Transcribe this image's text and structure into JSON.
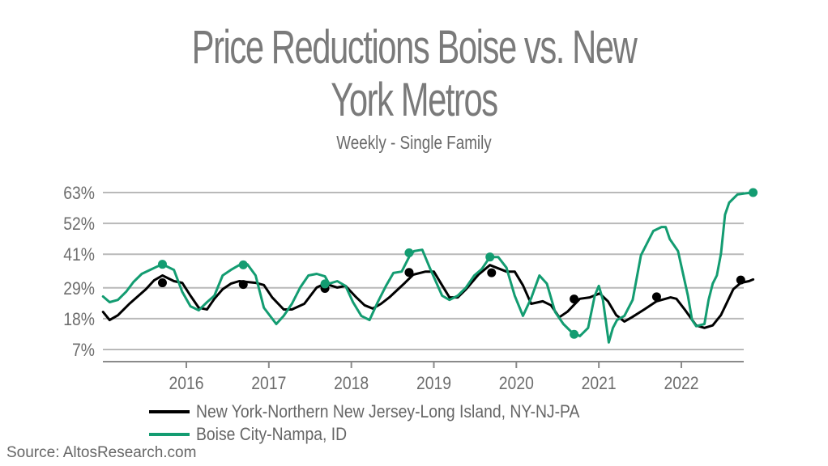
{
  "chart_data": {
    "type": "line",
    "title": "Price Reductions Boise vs. New York Metros",
    "title_lines": [
      "Price Reductions Boise vs. New",
      "York Metros"
    ],
    "subtitle": "Weekly - Single Family",
    "xlabel": "",
    "ylabel": "",
    "xlim": [
      2015.0,
      2022.8
    ],
    "ylim": [
      5.5,
      63
    ],
    "x_ticks": [
      2016,
      2017,
      2018,
      2019,
      2020,
      2021,
      2022
    ],
    "x_tick_labels": [
      "2016",
      "2017",
      "2018",
      "2019",
      "2020",
      "2021",
      "2022"
    ],
    "y_ticks": [
      7,
      18,
      29,
      41,
      52,
      63
    ],
    "y_tick_labels": [
      "7%",
      "18%",
      "29%",
      "41%",
      "52%",
      "63%"
    ],
    "grid": "horizontal",
    "legend_position": "bottom",
    "series": [
      {
        "name": "New York-Northern New Jersey-Long Island, NY-NJ-PA",
        "color": "#000000",
        "points": [
          [
            2014.99,
            20.4
          ],
          [
            2015.07,
            17.5
          ],
          [
            2015.17,
            19.2
          ],
          [
            2015.31,
            23.3
          ],
          [
            2015.51,
            28.5
          ],
          [
            2015.61,
            31.7
          ],
          [
            2015.71,
            33.4
          ],
          [
            2015.85,
            31.4
          ],
          [
            2015.95,
            30.8
          ],
          [
            2016.05,
            26.2
          ],
          [
            2016.15,
            21.9
          ],
          [
            2016.25,
            21.3
          ],
          [
            2016.34,
            25.1
          ],
          [
            2016.44,
            28.5
          ],
          [
            2016.54,
            30.5
          ],
          [
            2016.64,
            31.4
          ],
          [
            2016.84,
            30.8
          ],
          [
            2016.94,
            30.0
          ],
          [
            2017.04,
            25.6
          ],
          [
            2017.18,
            21.3
          ],
          [
            2017.28,
            21.3
          ],
          [
            2017.43,
            23.3
          ],
          [
            2017.58,
            29.1
          ],
          [
            2017.68,
            30.5
          ],
          [
            2017.83,
            29.1
          ],
          [
            2017.93,
            29.7
          ],
          [
            2018.06,
            25.6
          ],
          [
            2018.16,
            22.8
          ],
          [
            2018.26,
            21.6
          ],
          [
            2018.36,
            23.3
          ],
          [
            2018.46,
            25.6
          ],
          [
            2018.65,
            30.8
          ],
          [
            2018.75,
            33.7
          ],
          [
            2018.9,
            34.8
          ],
          [
            2019.0,
            34.8
          ],
          [
            2019.1,
            29.9
          ],
          [
            2019.19,
            25.6
          ],
          [
            2019.29,
            25.6
          ],
          [
            2019.39,
            28.5
          ],
          [
            2019.54,
            33.7
          ],
          [
            2019.68,
            37.1
          ],
          [
            2019.88,
            34.8
          ],
          [
            2019.98,
            34.8
          ],
          [
            2020.08,
            29.9
          ],
          [
            2020.18,
            23.3
          ],
          [
            2020.32,
            24.2
          ],
          [
            2020.42,
            22.8
          ],
          [
            2020.52,
            18.5
          ],
          [
            2020.62,
            20.5
          ],
          [
            2020.77,
            25.1
          ],
          [
            2020.89,
            25.6
          ],
          [
            2021.01,
            27.0
          ],
          [
            2021.11,
            24.2
          ],
          [
            2021.21,
            19.3
          ],
          [
            2021.31,
            17.0
          ],
          [
            2021.4,
            18.5
          ],
          [
            2021.55,
            21.3
          ],
          [
            2021.7,
            24.2
          ],
          [
            2021.87,
            25.6
          ],
          [
            2021.94,
            25.1
          ],
          [
            2022.04,
            21.3
          ],
          [
            2022.18,
            15.6
          ],
          [
            2022.28,
            14.7
          ],
          [
            2022.38,
            15.6
          ],
          [
            2022.48,
            19.3
          ],
          [
            2022.63,
            28.5
          ],
          [
            2022.72,
            30.8
          ],
          [
            2022.82,
            31.4
          ],
          [
            2022.87,
            32.0
          ]
        ],
        "markers": [
          [
            2015.71,
            30.8
          ],
          [
            2016.69,
            30.2
          ],
          [
            2017.68,
            28.8
          ],
          [
            2018.7,
            34.5
          ],
          [
            2019.7,
            34.4
          ],
          [
            2020.7,
            25.0
          ],
          [
            2021.7,
            25.8
          ],
          [
            2022.72,
            31.8
          ]
        ]
      },
      {
        "name": "Boise City-Nampa, ID",
        "color": "#139c71",
        "points": [
          [
            2014.99,
            25.9
          ],
          [
            2015.07,
            23.9
          ],
          [
            2015.17,
            24.7
          ],
          [
            2015.27,
            27.6
          ],
          [
            2015.36,
            31.1
          ],
          [
            2015.46,
            34.0
          ],
          [
            2015.56,
            35.4
          ],
          [
            2015.66,
            36.8
          ],
          [
            2015.71,
            37.4
          ],
          [
            2015.85,
            35.4
          ],
          [
            2015.95,
            27.6
          ],
          [
            2016.05,
            22.4
          ],
          [
            2016.15,
            21.0
          ],
          [
            2016.25,
            23.9
          ],
          [
            2016.34,
            26.2
          ],
          [
            2016.44,
            33.4
          ],
          [
            2016.54,
            35.4
          ],
          [
            2016.64,
            37.1
          ],
          [
            2016.74,
            37.4
          ],
          [
            2016.84,
            33.4
          ],
          [
            2016.94,
            21.9
          ],
          [
            2017.09,
            16.1
          ],
          [
            2017.18,
            19.0
          ],
          [
            2017.28,
            23.3
          ],
          [
            2017.38,
            29.1
          ],
          [
            2017.48,
            33.4
          ],
          [
            2017.58,
            34.0
          ],
          [
            2017.68,
            33.1
          ],
          [
            2017.73,
            30.5
          ],
          [
            2017.83,
            31.4
          ],
          [
            2017.93,
            29.7
          ],
          [
            2018.02,
            23.9
          ],
          [
            2018.12,
            19.0
          ],
          [
            2018.22,
            17.5
          ],
          [
            2018.32,
            23.9
          ],
          [
            2018.42,
            29.7
          ],
          [
            2018.51,
            34.3
          ],
          [
            2018.61,
            34.8
          ],
          [
            2018.71,
            40.6
          ],
          [
            2018.76,
            42.1
          ],
          [
            2018.86,
            42.6
          ],
          [
            2018.95,
            36.2
          ],
          [
            2019.1,
            26.2
          ],
          [
            2019.19,
            24.7
          ],
          [
            2019.29,
            26.2
          ],
          [
            2019.39,
            29.1
          ],
          [
            2019.49,
            33.4
          ],
          [
            2019.58,
            35.7
          ],
          [
            2019.68,
            40.0
          ],
          [
            2019.78,
            40.0
          ],
          [
            2019.88,
            36.2
          ],
          [
            2019.98,
            26.2
          ],
          [
            2020.08,
            19.0
          ],
          [
            2020.18,
            25.3
          ],
          [
            2020.28,
            33.4
          ],
          [
            2020.37,
            30.5
          ],
          [
            2020.47,
            20.4
          ],
          [
            2020.57,
            16.1
          ],
          [
            2020.67,
            13.2
          ],
          [
            2020.77,
            11.8
          ],
          [
            2020.87,
            14.7
          ],
          [
            2020.95,
            26.2
          ],
          [
            2021.0,
            29.7
          ],
          [
            2021.05,
            24.7
          ],
          [
            2021.12,
            9.5
          ],
          [
            2021.17,
            14.7
          ],
          [
            2021.22,
            17.5
          ],
          [
            2021.31,
            19.0
          ],
          [
            2021.41,
            24.7
          ],
          [
            2021.51,
            40.6
          ],
          [
            2021.61,
            46.4
          ],
          [
            2021.66,
            49.3
          ],
          [
            2021.76,
            50.7
          ],
          [
            2021.81,
            50.7
          ],
          [
            2021.86,
            46.4
          ],
          [
            2021.96,
            42.1
          ],
          [
            2022.08,
            26.2
          ],
          [
            2022.13,
            17.5
          ],
          [
            2022.18,
            15.3
          ],
          [
            2022.28,
            16.1
          ],
          [
            2022.33,
            24.7
          ],
          [
            2022.38,
            30.5
          ],
          [
            2022.43,
            33.4
          ],
          [
            2022.48,
            41.2
          ],
          [
            2022.53,
            55.1
          ],
          [
            2022.58,
            59.4
          ],
          [
            2022.68,
            62.3
          ],
          [
            2022.77,
            62.7
          ],
          [
            2022.87,
            63.0
          ]
        ],
        "markers": [
          [
            2015.71,
            37.4
          ],
          [
            2016.69,
            37.2
          ],
          [
            2017.68,
            30.4
          ],
          [
            2018.7,
            41.5
          ],
          [
            2019.68,
            40.0
          ],
          [
            2020.7,
            12.4
          ],
          [
            2022.87,
            63.0
          ]
        ]
      }
    ],
    "source": "Source: AltosResearch.com"
  }
}
